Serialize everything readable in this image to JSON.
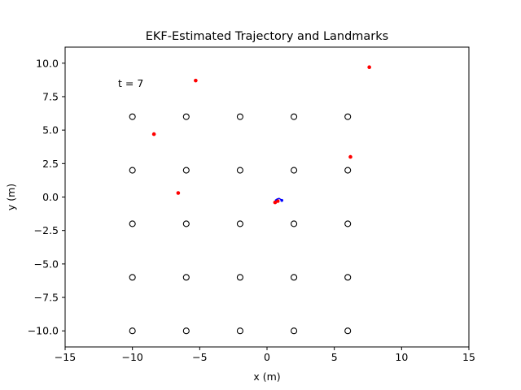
{
  "chart_data": {
    "type": "scatter",
    "title": "EKF-Estimated Trajectory and Landmarks",
    "xlabel": "x (m)",
    "ylabel": "y (m)",
    "xlim": [
      -15,
      15
    ],
    "ylim": [
      -11.2,
      11.2
    ],
    "xticks": [
      -15,
      -10,
      -5,
      0,
      5,
      10,
      15
    ],
    "yticks": [
      -10.0,
      -7.5,
      -5.0,
      -2.5,
      0.0,
      2.5,
      5.0,
      7.5,
      10.0
    ],
    "xtick_labels": [
      "−15",
      "−10",
      "−5",
      "0",
      "5",
      "10",
      "15"
    ],
    "ytick_labels": [
      "−10.0",
      "−7.5",
      "−5.0",
      "−2.5",
      "0.0",
      "2.5",
      "5.0",
      "7.5",
      "10.0"
    ],
    "grid": false,
    "annotation": {
      "text": "t = 7",
      "x": -11.1,
      "y": 8.3
    },
    "series": [
      {
        "role": "landmarks",
        "marker": "open-circle",
        "color": "#000000",
        "x": [
          -10,
          -6,
          -2,
          2,
          6,
          -10,
          -6,
          -2,
          2,
          6,
          -10,
          -6,
          -2,
          2,
          6,
          -10,
          -6,
          -2,
          2,
          6,
          -10,
          -6,
          -2,
          2,
          6
        ],
        "y": [
          6,
          6,
          6,
          6,
          6,
          2,
          2,
          2,
          2,
          2,
          -2,
          -2,
          -2,
          -2,
          -2,
          -6,
          -6,
          -6,
          -6,
          -6,
          -10,
          -10,
          -10,
          -10,
          -10
        ]
      },
      {
        "role": "landmark-estimates",
        "marker": "dot",
        "color": "#ff0000",
        "x": [
          -5.3,
          7.6,
          -8.4,
          6.2,
          -6.6,
          0.6,
          0.8
        ],
        "y": [
          8.7,
          9.7,
          4.7,
          3.0,
          0.3,
          -0.4,
          -0.3
        ]
      },
      {
        "role": "trajectory",
        "marker": "line",
        "color": "#0000ff",
        "x": [
          0.6,
          0.75,
          0.9,
          1.05,
          1.1
        ],
        "y": [
          -0.25,
          -0.15,
          -0.1,
          -0.2,
          -0.25
        ]
      }
    ]
  }
}
